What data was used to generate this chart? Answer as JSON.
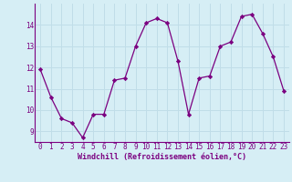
{
  "x": [
    0,
    1,
    2,
    3,
    4,
    5,
    6,
    7,
    8,
    9,
    10,
    11,
    12,
    13,
    14,
    15,
    16,
    17,
    18,
    19,
    20,
    21,
    22,
    23
  ],
  "y": [
    11.9,
    10.6,
    9.6,
    9.4,
    8.7,
    9.8,
    9.8,
    11.4,
    11.5,
    13.0,
    14.1,
    14.3,
    14.1,
    12.3,
    9.8,
    11.5,
    11.6,
    13.0,
    13.2,
    14.4,
    14.5,
    13.6,
    12.5,
    10.9
  ],
  "line_color": "#7b0080",
  "marker": "D",
  "marker_size": 2.2,
  "bg_color": "#d6eef5",
  "grid_color": "#c0dde8",
  "xlabel": "Windchill (Refroidissement éolien,°C)",
  "xlabel_color": "#7b0080",
  "xlabel_fontsize": 6.0,
  "tick_color": "#7b0080",
  "tick_fontsize": 5.5,
  "ylim": [
    8.5,
    15.0
  ],
  "yticks": [
    9,
    10,
    11,
    12,
    13,
    14
  ],
  "xlim": [
    -0.5,
    23.5
  ]
}
